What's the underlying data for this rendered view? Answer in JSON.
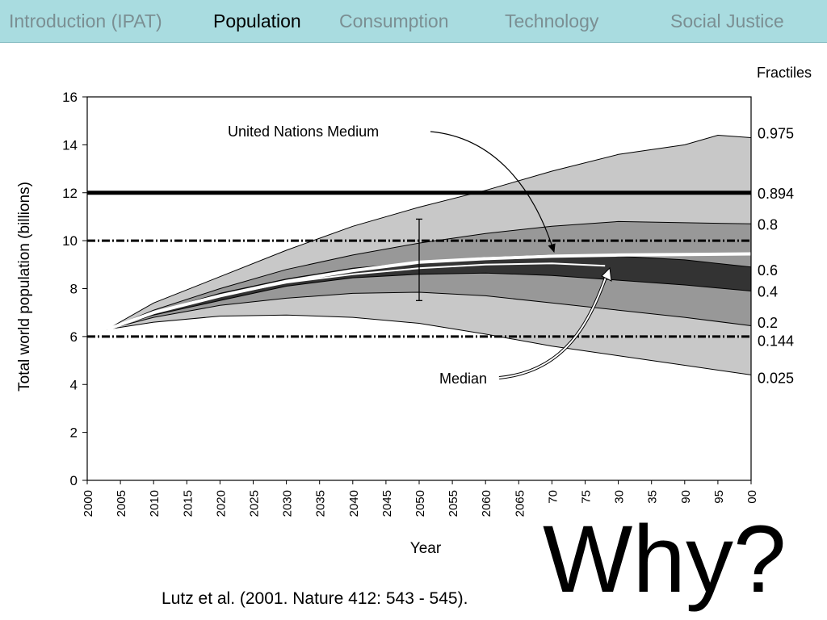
{
  "nav": {
    "tabs": [
      {
        "label": "Introduction (IPAT)",
        "active": false
      },
      {
        "label": "Population",
        "active": true
      },
      {
        "label": "Consumption",
        "active": false
      },
      {
        "label": "Technology",
        "active": false
      },
      {
        "label": "Social Justice",
        "active": false
      }
    ]
  },
  "headline": "Why?",
  "citation": "Lutz et al. (2001. Nature 412: 543 - 545).",
  "chart_data": {
    "type": "area",
    "title": "",
    "xlabel": "Year",
    "ylabel": "Total world population (billions)",
    "xlim": [
      2000,
      2100
    ],
    "ylim": [
      0,
      16
    ],
    "x_tick_labels": [
      "2000",
      "2005",
      "2010",
      "2015",
      "2020",
      "2025",
      "2030",
      "2035",
      "2040",
      "2045",
      "2050",
      "2055",
      "2060",
      "2065",
      "70",
      "75",
      "30",
      "35",
      "90",
      "95",
      "00"
    ],
    "y_ticks": [
      0,
      2,
      4,
      6,
      8,
      10,
      12,
      14,
      16
    ],
    "fractiles_label": "Fractiles",
    "fractile_labels": [
      "0.975",
      "0.894",
      "0.8",
      "0.6",
      "0.4",
      "0.2",
      "0.144",
      "0.025"
    ],
    "bands": [
      {
        "lower": "0.025",
        "upper": "0.975",
        "color": "#c8c8c8"
      },
      {
        "lower": "0.2",
        "upper": "0.8",
        "color": "#989898"
      },
      {
        "lower": "0.4",
        "upper": "0.6",
        "color": "#333333"
      }
    ],
    "series": [
      {
        "name": "0.975",
        "x": [
          2003,
          2010,
          2020,
          2030,
          2040,
          2050,
          2060,
          2070,
          2080,
          2090,
          2095,
          2100
        ],
        "values": [
          6.3,
          7.4,
          8.5,
          9.6,
          10.6,
          11.4,
          12.1,
          12.9,
          13.6,
          14.0,
          14.4,
          14.3
        ]
      },
      {
        "name": "0.8",
        "x": [
          2003,
          2010,
          2020,
          2030,
          2040,
          2050,
          2060,
          2070,
          2080,
          2090,
          2100
        ],
        "values": [
          6.3,
          7.1,
          8.0,
          8.8,
          9.4,
          9.9,
          10.3,
          10.6,
          10.8,
          10.75,
          10.7
        ]
      },
      {
        "name": "0.6",
        "x": [
          2003,
          2010,
          2020,
          2030,
          2040,
          2050,
          2060,
          2070,
          2080,
          2090,
          2100
        ],
        "values": [
          6.3,
          7.0,
          7.8,
          8.4,
          8.85,
          9.1,
          9.3,
          9.4,
          9.35,
          9.2,
          8.9
        ]
      },
      {
        "name": "0.4",
        "x": [
          2003,
          2010,
          2020,
          2030,
          2040,
          2050,
          2060,
          2070,
          2080,
          2090,
          2100
        ],
        "values": [
          6.3,
          6.9,
          7.5,
          8.1,
          8.45,
          8.6,
          8.65,
          8.55,
          8.35,
          8.15,
          7.9
        ]
      },
      {
        "name": "0.2",
        "x": [
          2003,
          2010,
          2020,
          2030,
          2040,
          2050,
          2060,
          2070,
          2080,
          2090,
          2100
        ],
        "values": [
          6.3,
          6.8,
          7.3,
          7.6,
          7.8,
          7.85,
          7.7,
          7.4,
          7.1,
          6.8,
          6.45
        ]
      },
      {
        "name": "0.025",
        "x": [
          2003,
          2010,
          2020,
          2030,
          2040,
          2050,
          2060,
          2070,
          2080,
          2090,
          2100
        ],
        "values": [
          6.3,
          6.6,
          6.85,
          6.9,
          6.8,
          6.55,
          6.1,
          5.6,
          5.2,
          4.8,
          4.4
        ]
      },
      {
        "name": "Median",
        "x": [
          2003,
          2010,
          2020,
          2030,
          2040,
          2050,
          2060,
          2070,
          2078
        ],
        "values": [
          6.3,
          7.0,
          7.7,
          8.25,
          8.6,
          8.85,
          9.0,
          9.05,
          8.95
        ]
      },
      {
        "name": "United Nations Medium",
        "x": [
          2003,
          2010,
          2020,
          2030,
          2040,
          2050,
          2060,
          2070,
          2080,
          2090,
          2100
        ],
        "values": [
          6.3,
          7.0,
          7.7,
          8.3,
          8.75,
          9.1,
          9.25,
          9.35,
          9.4,
          9.42,
          9.45
        ]
      }
    ],
    "reference_lines": [
      {
        "y": 12,
        "label": "0.894",
        "style": "solid"
      },
      {
        "y": 10,
        "style": "dashdot"
      },
      {
        "y": 6,
        "style": "dashdot"
      }
    ],
    "fractile_label_values": [
      {
        "label": "0.975",
        "y": 14.5
      },
      {
        "label": "0.894",
        "y": 12.0
      },
      {
        "label": "0.8",
        "y": 10.7
      },
      {
        "label": "0.6",
        "y": 8.8
      },
      {
        "label": "0.4",
        "y": 7.9
      },
      {
        "label": "0.2",
        "y": 6.6
      },
      {
        "label": "0.144",
        "y": 5.85
      },
      {
        "label": "0.025",
        "y": 4.3
      }
    ],
    "error_bar": {
      "x": 2050,
      "low": 7.5,
      "high": 10.9
    },
    "annotations": [
      "United Nations Medium",
      "Median"
    ],
    "grid": false
  }
}
